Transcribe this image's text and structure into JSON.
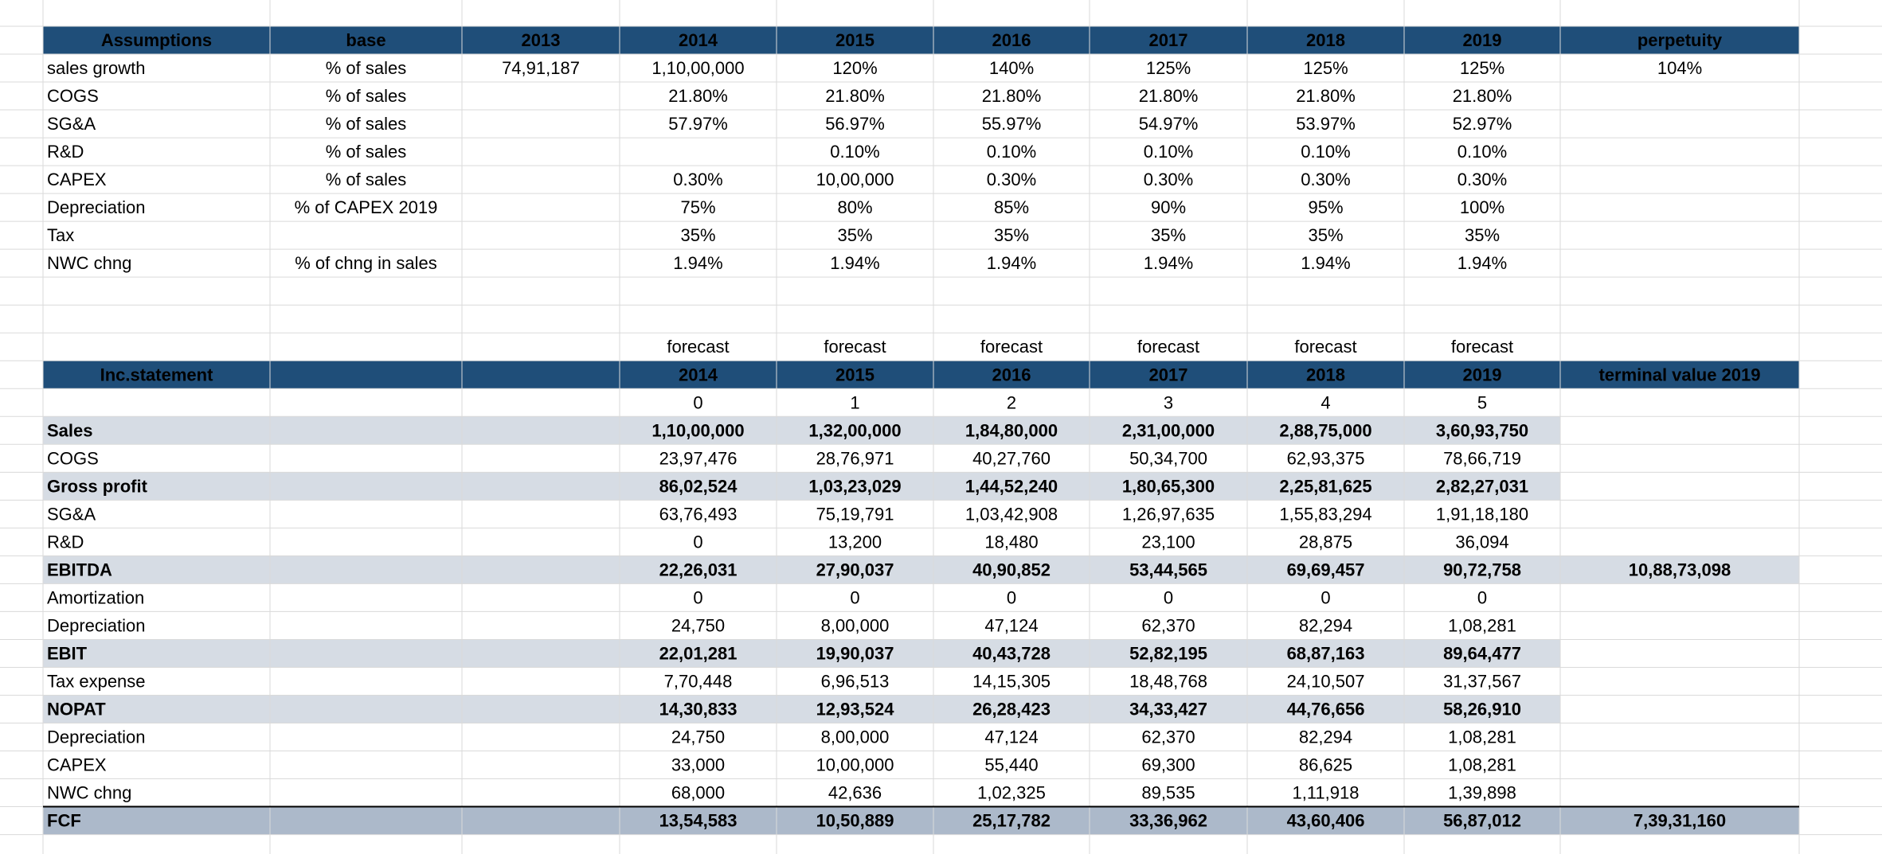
{
  "assumptions": {
    "header": [
      "Assumptions",
      "base",
      "2013",
      "2014",
      "2015",
      "2016",
      "2017",
      "2018",
      "2019",
      "perpetuity"
    ],
    "rows": [
      [
        "sales growth",
        "% of sales",
        "74,91,187",
        "1,10,00,000",
        "120%",
        "140%",
        "125%",
        "125%",
        "125%",
        "104%"
      ],
      [
        "COGS",
        "% of sales",
        null,
        "21.80%",
        "21.80%",
        "21.80%",
        "21.80%",
        "21.80%",
        "21.80%",
        null
      ],
      [
        "SG&A",
        "% of sales",
        null,
        "57.97%",
        "56.97%",
        "55.97%",
        "54.97%",
        "53.97%",
        "52.97%",
        null
      ],
      [
        "R&D",
        "% of sales",
        null,
        null,
        "0.10%",
        "0.10%",
        "0.10%",
        "0.10%",
        "0.10%",
        null
      ],
      [
        "CAPEX",
        "% of sales",
        null,
        "0.30%",
        "10,00,000",
        "0.30%",
        "0.30%",
        "0.30%",
        "0.30%",
        null
      ],
      [
        "Depreciation",
        "% of CAPEX 2019",
        null,
        "75%",
        "80%",
        "85%",
        "90%",
        "95%",
        "100%",
        null
      ],
      [
        "Tax",
        null,
        null,
        "35%",
        "35%",
        "35%",
        "35%",
        "35%",
        "35%",
        null
      ],
      [
        "NWC chng",
        "% of chng in sales",
        null,
        "1.94%",
        "1.94%",
        "1.94%",
        "1.94%",
        "1.94%",
        "1.94%",
        null
      ]
    ]
  },
  "income_statement": {
    "forecast": [
      null,
      null,
      null,
      "forecast",
      "forecast",
      "forecast",
      "forecast",
      "forecast",
      "forecast",
      null
    ],
    "header": [
      "Inc.statement",
      null,
      null,
      "2014",
      "2015",
      "2016",
      "2017",
      "2018",
      "2019",
      "terminal value 2019"
    ],
    "index": [
      null,
      null,
      null,
      0,
      1,
      2,
      3,
      4,
      5,
      null
    ],
    "rows": [
      [
        "Sales",
        null,
        null,
        "1,10,00,000",
        "1,32,00,000",
        "1,84,80,000",
        "2,31,00,000",
        "2,88,75,000",
        "3,60,93,750",
        null
      ],
      [
        "COGS",
        null,
        null,
        "23,97,476",
        "28,76,971",
        "40,27,760",
        "50,34,700",
        "62,93,375",
        "78,66,719",
        null
      ],
      [
        "Gross profit",
        null,
        null,
        "86,02,524",
        "1,03,23,029",
        "1,44,52,240",
        "1,80,65,300",
        "2,25,81,625",
        "2,82,27,031",
        null
      ],
      [
        "SG&A",
        null,
        null,
        "63,76,493",
        "75,19,791",
        "1,03,42,908",
        "1,26,97,635",
        "1,55,83,294",
        "1,91,18,180",
        null
      ],
      [
        "R&D",
        null,
        null,
        "0",
        "13,200",
        "18,480",
        "23,100",
        "28,875",
        "36,094",
        null
      ],
      [
        "EBITDA",
        null,
        null,
        "22,26,031",
        "27,90,037",
        "40,90,852",
        "53,44,565",
        "69,69,457",
        "90,72,758",
        "10,88,73,098"
      ],
      [
        "Amortization",
        null,
        null,
        "0",
        "0",
        "0",
        "0",
        "0",
        "0",
        null
      ],
      [
        "Depreciation",
        null,
        null,
        "24,750",
        "8,00,000",
        "47,124",
        "62,370",
        "82,294",
        "1,08,281",
        null
      ],
      [
        "EBIT",
        null,
        null,
        "22,01,281",
        "19,90,037",
        "40,43,728",
        "52,82,195",
        "68,87,163",
        "89,64,477",
        null
      ],
      [
        "Tax expense",
        null,
        null,
        "7,70,448",
        "6,96,513",
        "14,15,305",
        "18,48,768",
        "24,10,507",
        "31,37,567",
        null
      ],
      [
        "NOPAT",
        null,
        null,
        "14,30,833",
        "12,93,524",
        "26,28,423",
        "34,33,427",
        "44,76,656",
        "58,26,910",
        null
      ],
      [
        "Depreciation",
        null,
        null,
        "24,750",
        "8,00,000",
        "47,124",
        "62,370",
        "82,294",
        "1,08,281",
        null
      ],
      [
        "CAPEX",
        null,
        null,
        "33,000",
        "10,00,000",
        "55,440",
        "69,300",
        "86,625",
        "1,08,281",
        null
      ],
      [
        "NWC chng",
        null,
        null,
        "68,000",
        "42,636",
        "1,02,325",
        "89,535",
        "1,11,918",
        "1,39,898",
        null
      ],
      [
        "FCF",
        null,
        null,
        "13,54,583",
        "10,50,889",
        "25,17,782",
        "33,36,962",
        "43,60,406",
        "56,87,012",
        "7,39,31,160"
      ]
    ]
  }
}
